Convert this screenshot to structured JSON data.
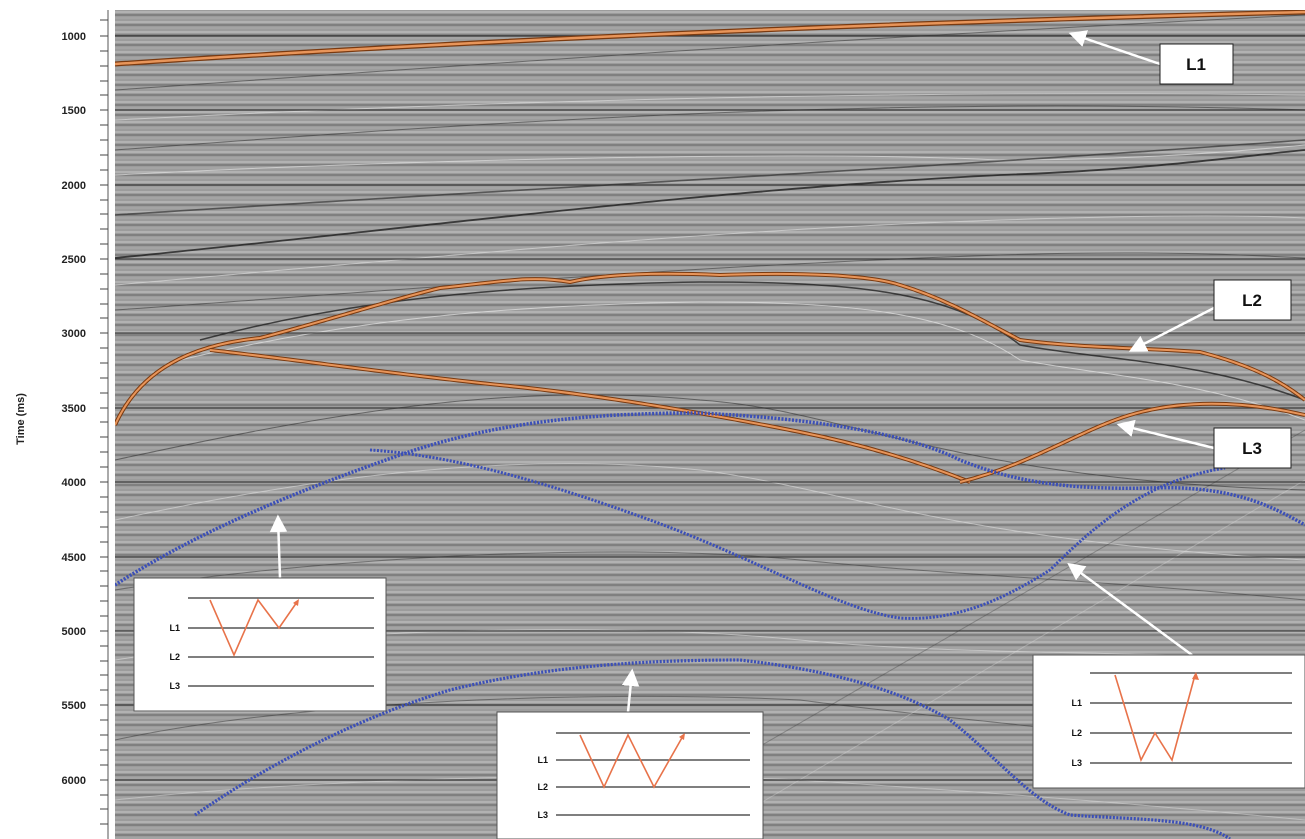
{
  "axis": {
    "title": "Time (ms)",
    "ticks": [
      "1000",
      "1500",
      "2000",
      "2500",
      "3000",
      "3500",
      "4000",
      "4500",
      "5000",
      "5500",
      "6000"
    ]
  },
  "callouts": {
    "l1": "L1",
    "l2": "L2",
    "l3": "L3"
  },
  "insets": {
    "left": {
      "labels": [
        "L1",
        "L2",
        "L3"
      ]
    },
    "center": {
      "labels": [
        "L1",
        "L2",
        "L3"
      ]
    },
    "right": {
      "labels": [
        "L1",
        "L2",
        "L3"
      ]
    }
  },
  "colors": {
    "background": "#9a9a9a",
    "horizon": "#e0864a",
    "multiple_path": "#3b4fb8",
    "arrow": "#ffffff",
    "inset_ray": "#e8734a"
  }
}
